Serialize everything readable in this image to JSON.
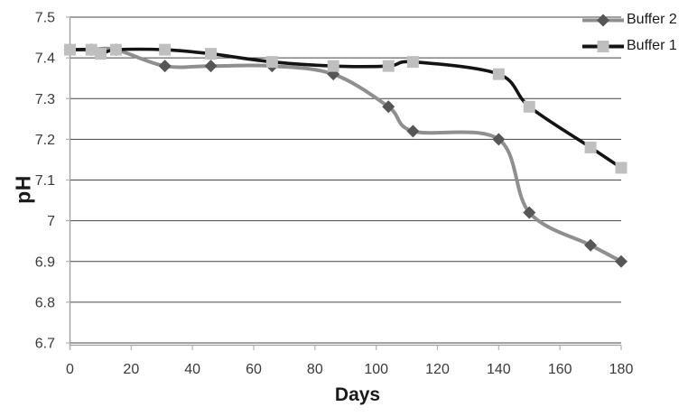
{
  "chart_data": {
    "type": "line",
    "title": "",
    "xlabel": "Days",
    "ylabel": "pH",
    "xlim": [
      0,
      180
    ],
    "ylim": [
      6.7,
      7.5
    ],
    "x_ticks": [
      0,
      20,
      40,
      60,
      80,
      100,
      120,
      140,
      160,
      180
    ],
    "y_ticks": [
      "7.5",
      "7.4",
      "7.3",
      "7.2",
      "7.1",
      "7",
      "6.9",
      "6.8",
      "6.7"
    ],
    "y_tick_values": [
      7.5,
      7.4,
      7.3,
      7.2,
      7.1,
      7.0,
      6.9,
      6.8,
      6.7
    ],
    "grid": true,
    "smoothed_lines": true,
    "legend_position": "top-right",
    "series": [
      {
        "name": "Buffer 2",
        "marker": "diamond",
        "line_color": "#8f8f8f",
        "marker_color": "#565656",
        "x": [
          0,
          7,
          15,
          31,
          46,
          66,
          86,
          104,
          112,
          140,
          150,
          170,
          180
        ],
        "y": [
          7.42,
          7.42,
          7.42,
          7.38,
          7.38,
          7.38,
          7.36,
          7.28,
          7.22,
          7.2,
          7.02,
          6.94,
          6.9
        ]
      },
      {
        "name": "Buffer 1",
        "marker": "square",
        "line_color": "#141414",
        "marker_color": "#bfbfbf",
        "x": [
          0,
          7,
          10,
          15,
          31,
          46,
          66,
          86,
          104,
          112,
          140,
          150,
          170,
          180
        ],
        "y": [
          7.42,
          7.42,
          7.41,
          7.42,
          7.42,
          7.41,
          7.39,
          7.38,
          7.38,
          7.39,
          7.36,
          7.28,
          7.18,
          7.13
        ]
      }
    ],
    "colors": {
      "gridline": "#454545",
      "axis_line": "#9e9e9e",
      "tick_mark": "#b3b3b3",
      "tick_text": "#3a3a3a"
    }
  }
}
